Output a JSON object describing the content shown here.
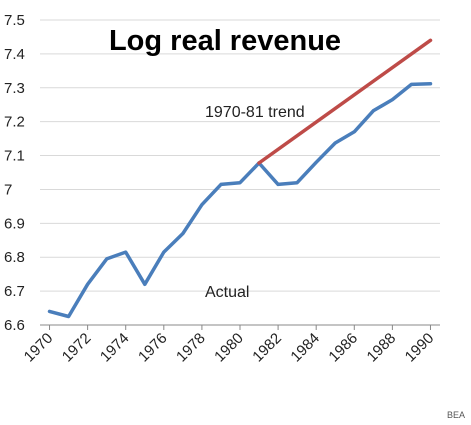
{
  "chart_data": {
    "type": "line",
    "title": "Log real revenue",
    "x_ticks": [
      "1970",
      "1972",
      "1974",
      "1976",
      "1978",
      "1980",
      "1982",
      "1984",
      "1986",
      "1988",
      "1990"
    ],
    "y_ticks": [
      "6.6",
      "6.7",
      "6.8",
      "6.9",
      "7",
      "7.1",
      "7.2",
      "7.3",
      "7.4",
      "7.5"
    ],
    "xlim": [
      1969.5,
      1990.5
    ],
    "ylim": [
      6.6,
      7.5
    ],
    "grid": "horizontal",
    "series": [
      {
        "label": "Actual",
        "color": "#4a7ebb",
        "x": [
          1970,
          1971,
          1972,
          1973,
          1974,
          1975,
          1976,
          1977,
          1978,
          1979,
          1980,
          1981,
          1982,
          1983,
          1984,
          1985,
          1986,
          1987,
          1988,
          1989,
          1990
        ],
        "y": [
          6.64,
          6.625,
          6.72,
          6.795,
          6.815,
          6.72,
          6.815,
          6.87,
          6.955,
          7.015,
          7.02,
          7.078,
          7.015,
          7.02,
          7.08,
          7.137,
          7.17,
          7.232,
          7.265,
          7.31,
          7.312
        ]
      },
      {
        "label": "1970-81 trend",
        "color": "#be4b48",
        "x": [
          1981,
          1990
        ],
        "y": [
          7.078,
          7.44
        ]
      }
    ]
  },
  "source": "BEA"
}
